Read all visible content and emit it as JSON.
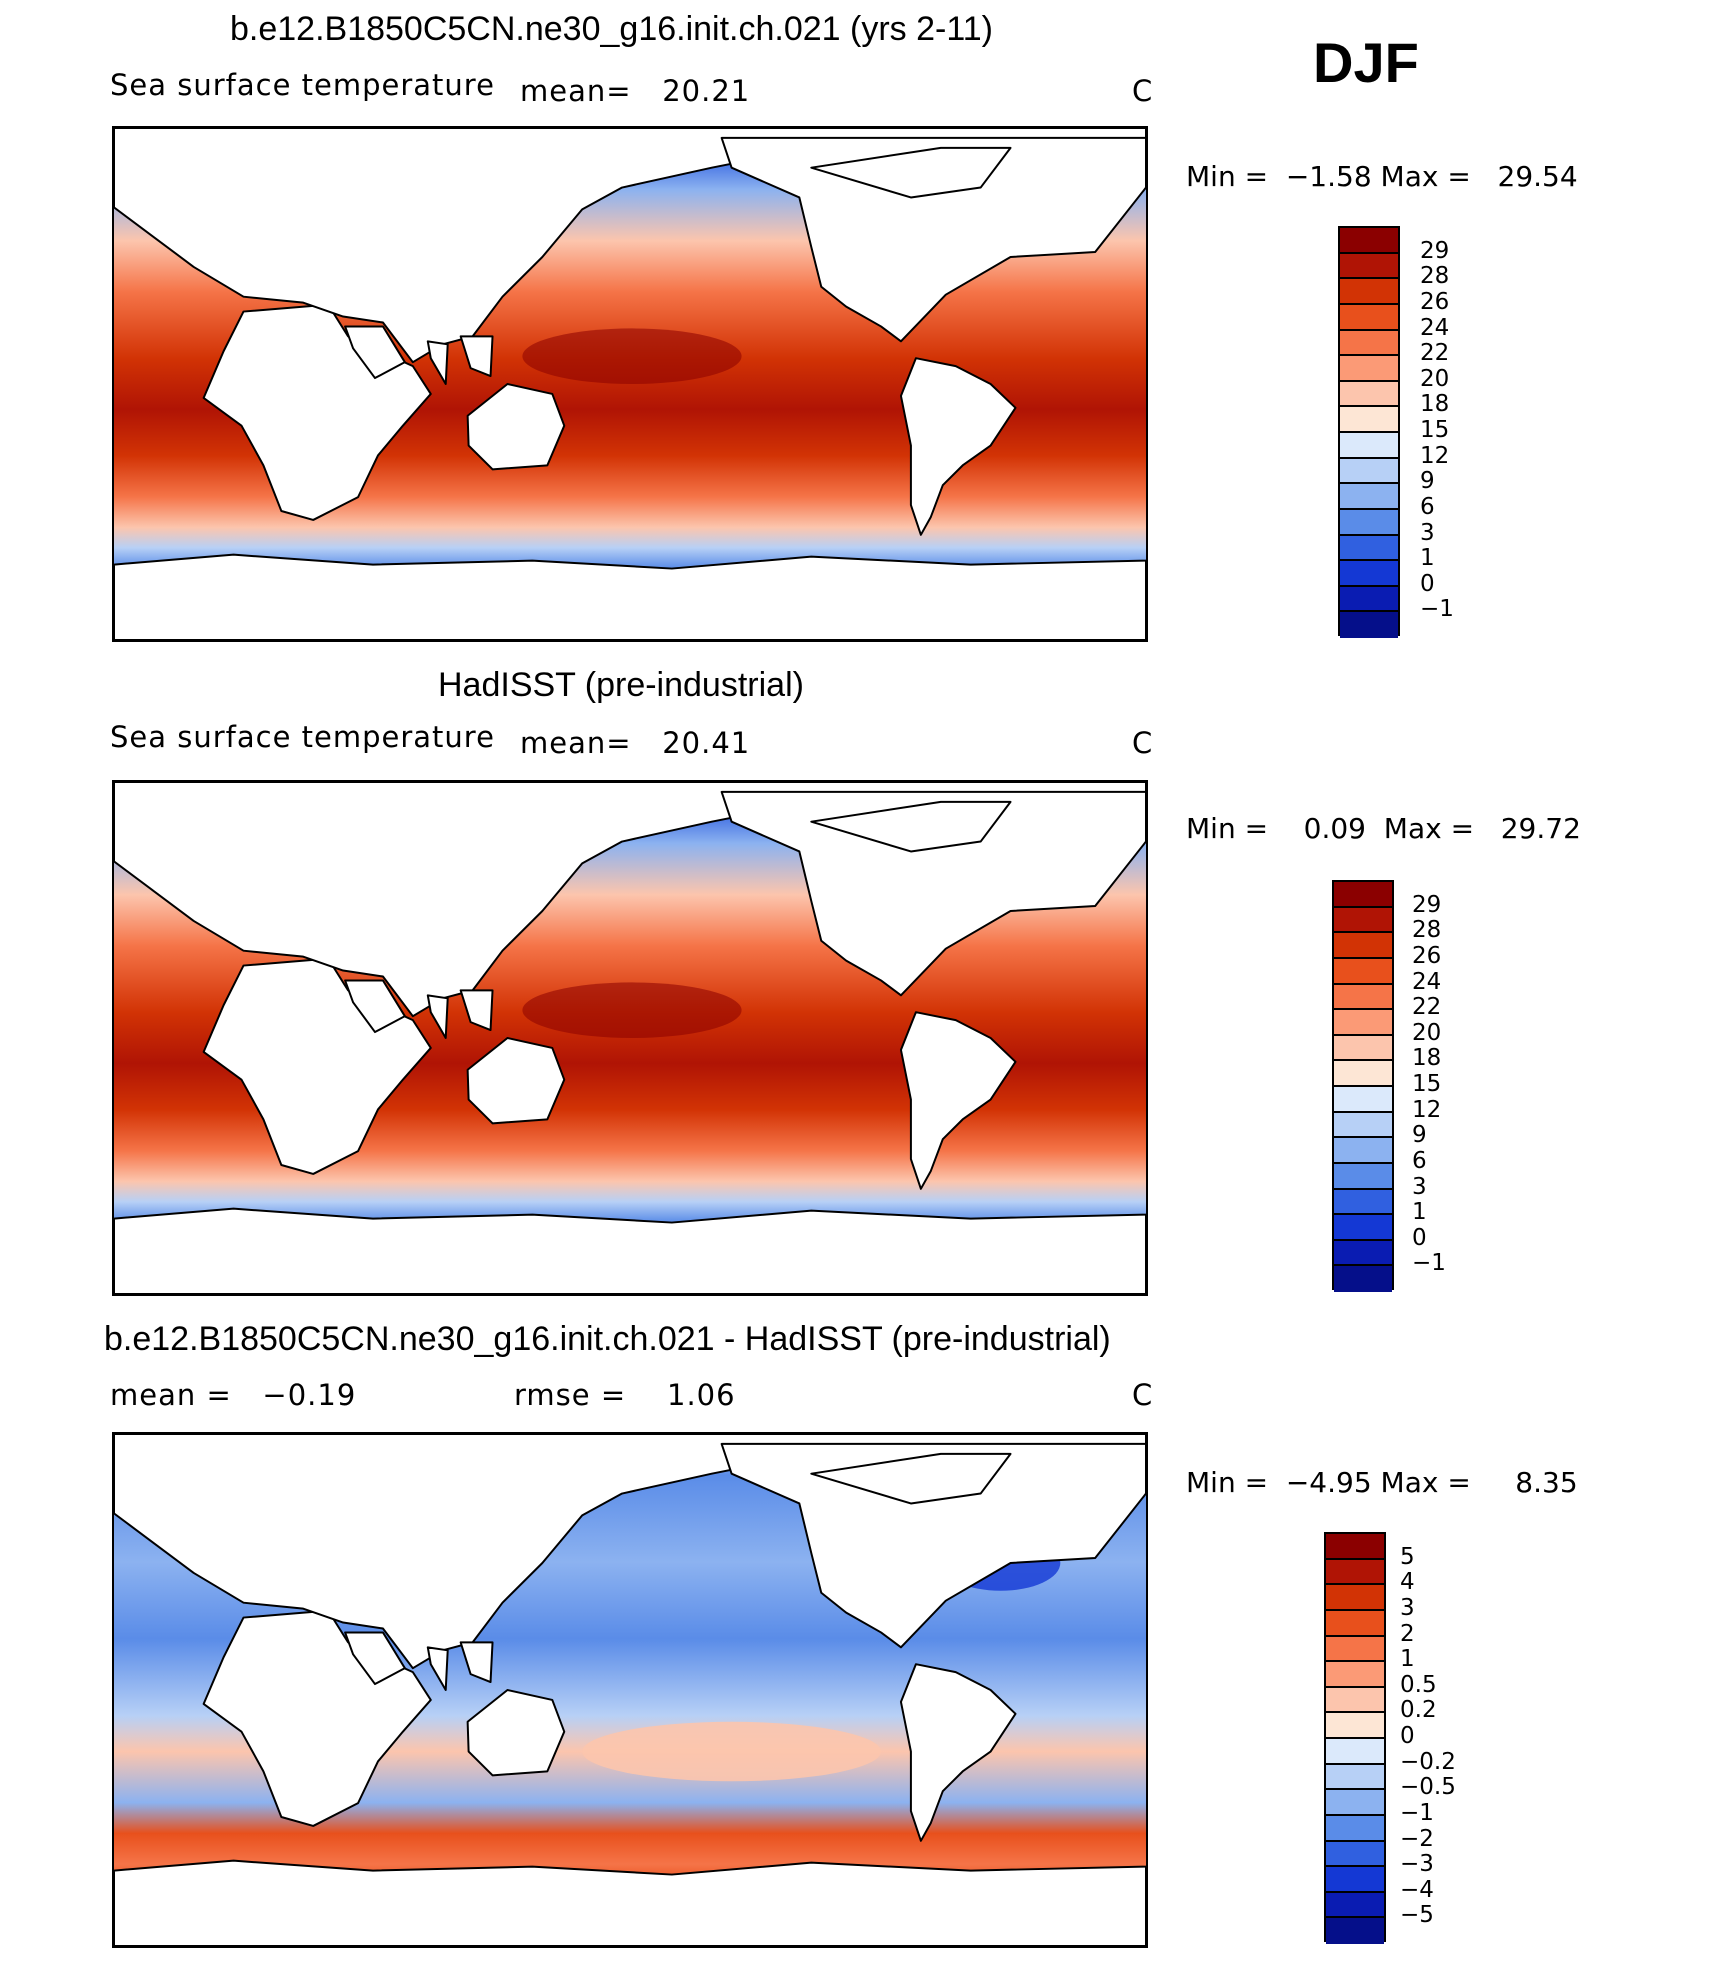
{
  "season": "DJF",
  "panels": [
    {
      "title": "b.e12.B1850C5CN.ne30_g16.init.ch.021 (yrs 2-11)",
      "variable": "Sea surface temperature",
      "stat1": "mean=   20.21",
      "stat2": "",
      "units": "C",
      "minmax": "Min =  −1.58 Max =   29.54",
      "colorbar": {
        "colors": [
          "#8b0000",
          "#b01405",
          "#d23305",
          "#e8501c",
          "#f57448",
          "#fb9a76",
          "#fcc5ad",
          "#fde6d5",
          "#dbe9fb",
          "#b7d0f6",
          "#8cb2f0",
          "#5a8ce8",
          "#3060e0",
          "#1438d4",
          "#0a1cb2",
          "#050f8a"
        ],
        "labels": [
          "29",
          "28",
          "26",
          "24",
          "22",
          "20",
          "18",
          "15",
          "12",
          "9",
          "6",
          "3",
          "1",
          "0",
          "−1"
        ]
      }
    },
    {
      "title": "HadISST (pre-industrial)",
      "variable": "Sea surface temperature",
      "stat1": "mean=   20.41",
      "stat2": "",
      "units": "C",
      "minmax": "Min =    0.09  Max =   29.72",
      "colorbar": {
        "colors": [
          "#8b0000",
          "#b01405",
          "#d23305",
          "#e8501c",
          "#f57448",
          "#fb9a76",
          "#fcc5ad",
          "#fde6d5",
          "#dbe9fb",
          "#b7d0f6",
          "#8cb2f0",
          "#5a8ce8",
          "#3060e0",
          "#1438d4",
          "#0a1cb2",
          "#050f8a"
        ],
        "labels": [
          "29",
          "28",
          "26",
          "24",
          "22",
          "20",
          "18",
          "15",
          "12",
          "9",
          "6",
          "3",
          "1",
          "0",
          "−1"
        ]
      }
    },
    {
      "title": "b.e12.B1850C5CN.ne30_g16.init.ch.021 - HadISST (pre-industrial)",
      "variable": "",
      "stat1": "mean =   −0.19",
      "stat2": "rmse =    1.06",
      "units": "C",
      "minmax": "Min =  −4.95 Max =     8.35",
      "colorbar": {
        "colors": [
          "#8b0000",
          "#b01405",
          "#d23305",
          "#e8501c",
          "#f57448",
          "#fb9a76",
          "#fcc5ad",
          "#fde6d5",
          "#dbe9fb",
          "#b7d0f6",
          "#8cb2f0",
          "#5a8ce8",
          "#3060e0",
          "#1438d4",
          "#0a1cb2",
          "#050f8a"
        ],
        "labels": [
          "5",
          "4",
          "3",
          "2",
          "1",
          "0.5",
          "0.2",
          "0",
          "−0.2",
          "−0.5",
          "−1",
          "−2",
          "−3",
          "−4",
          "−5"
        ]
      }
    }
  ]
}
